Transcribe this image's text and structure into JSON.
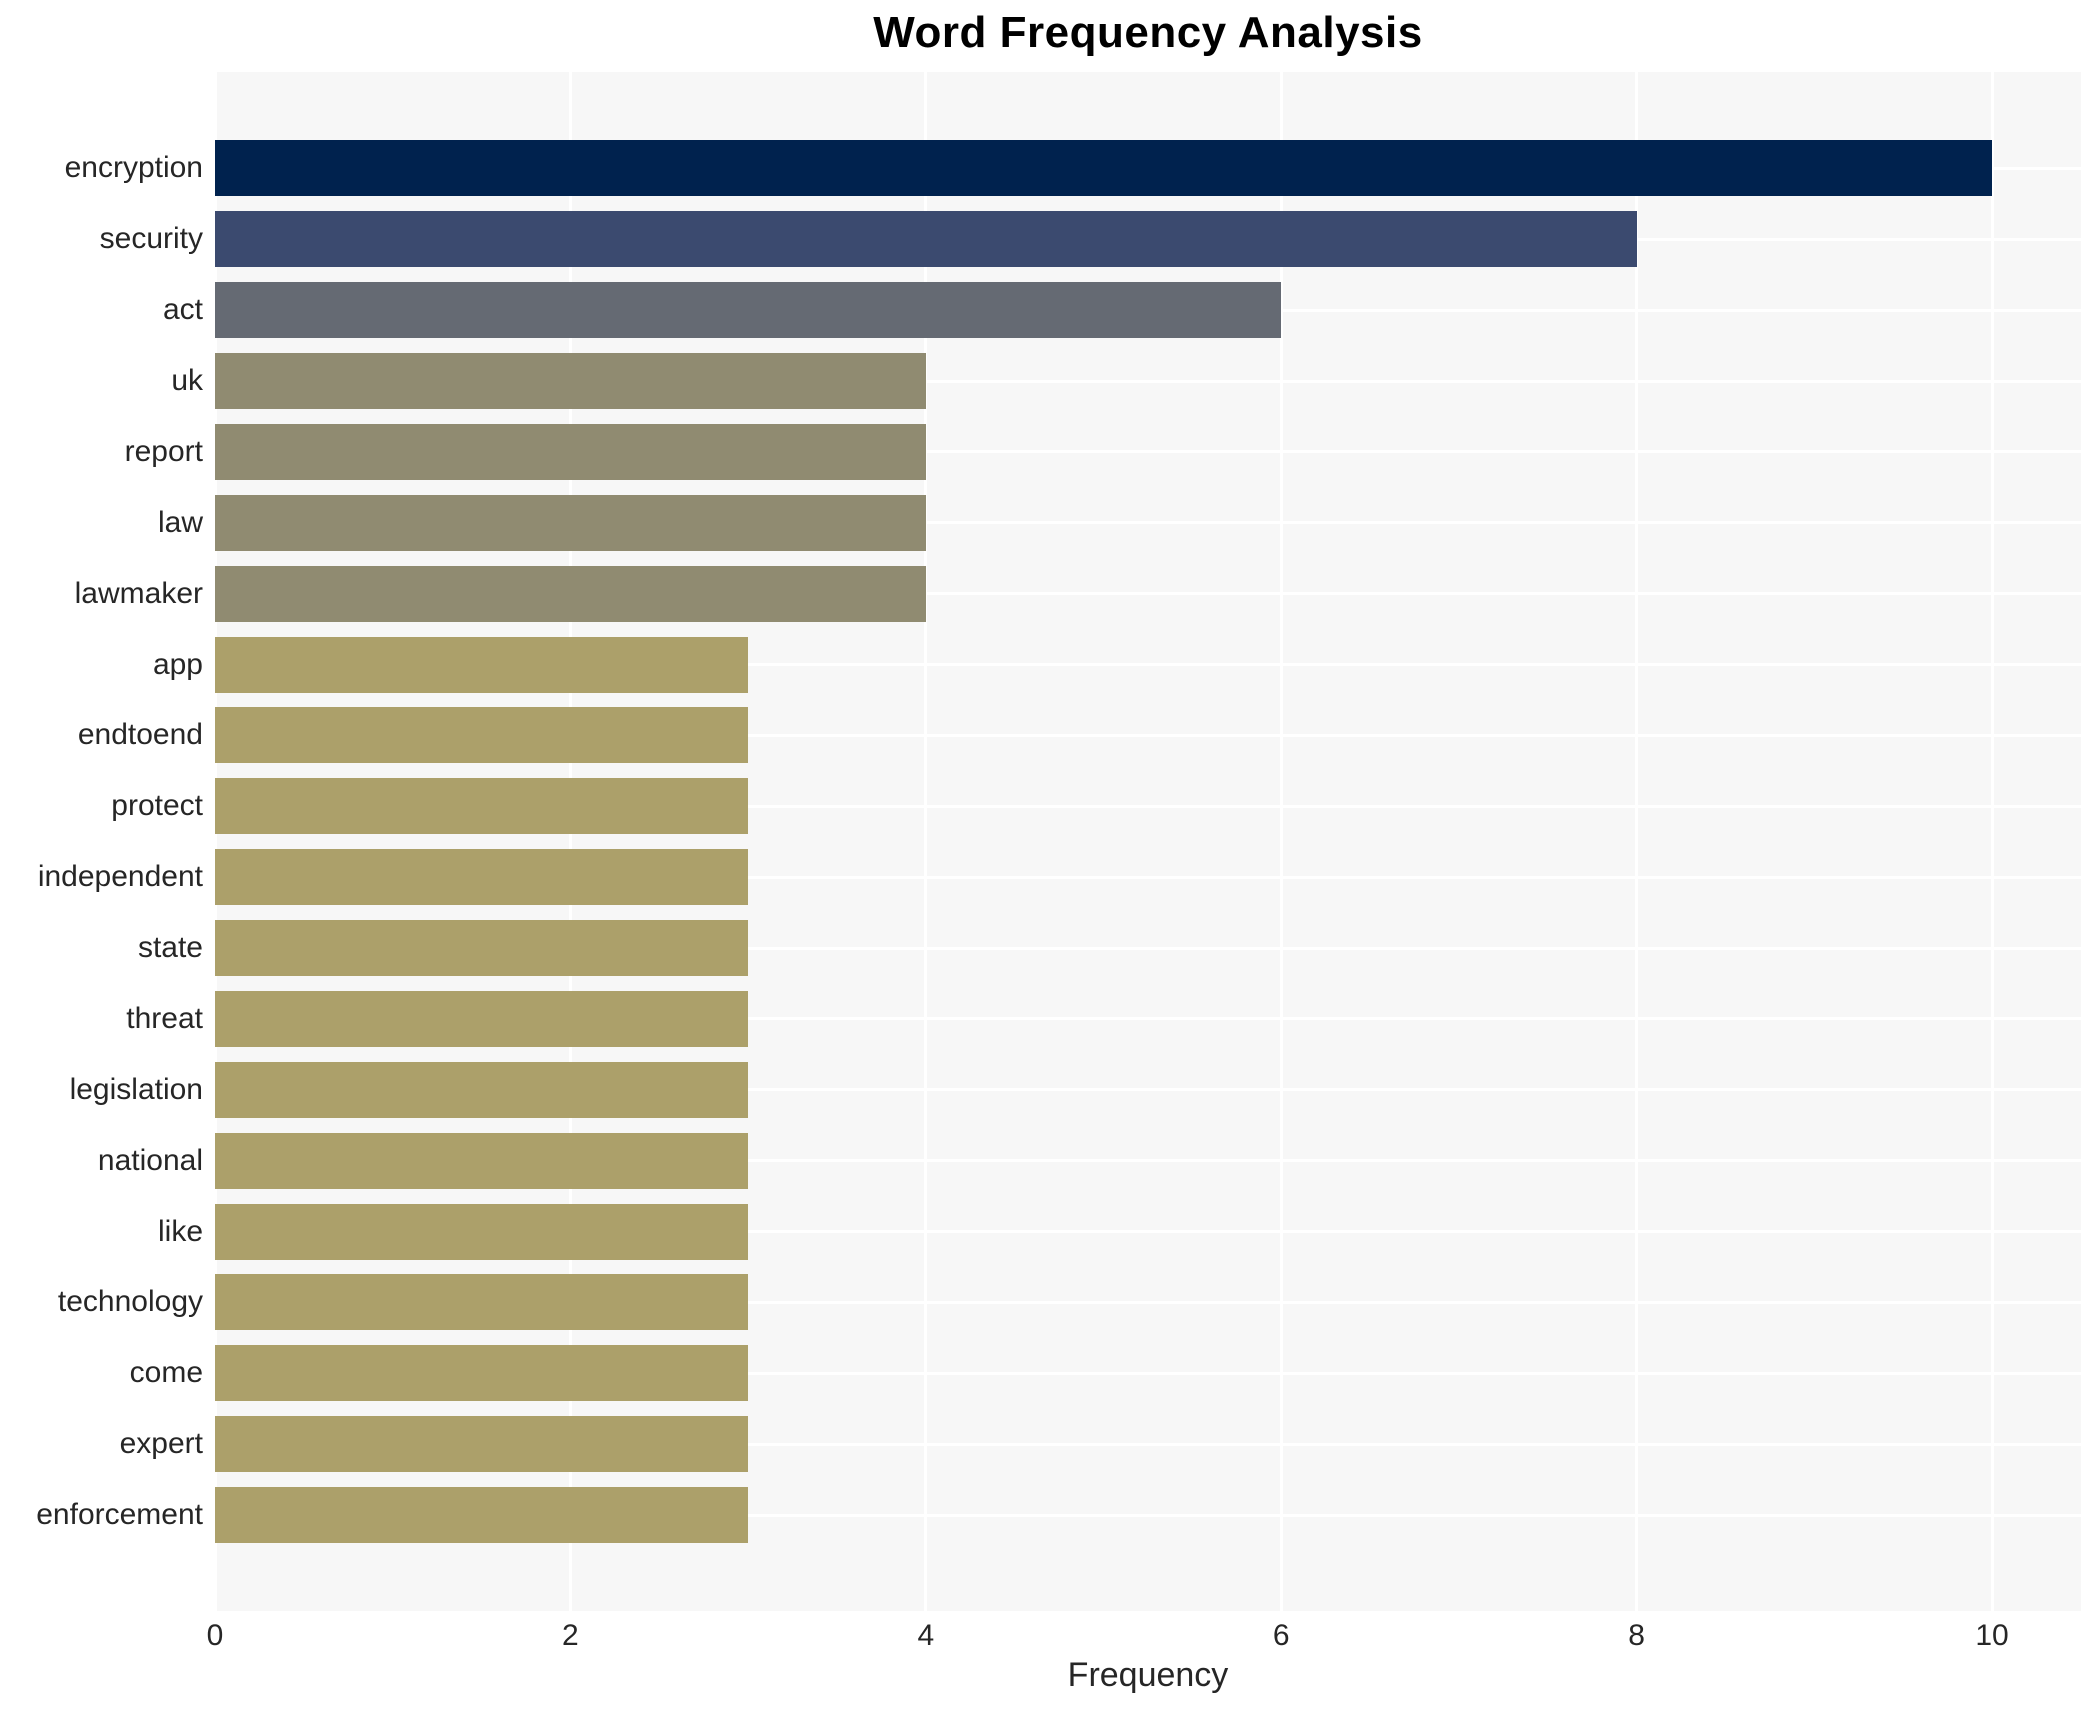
{
  "chart_data": {
    "type": "bar",
    "orientation": "horizontal",
    "title": "Word Frequency Analysis",
    "xlabel": "Frequency",
    "ylabel": "",
    "categories": [
      "encryption",
      "security",
      "act",
      "uk",
      "report",
      "law",
      "lawmaker",
      "app",
      "endtoend",
      "protect",
      "independent",
      "state",
      "threat",
      "legislation",
      "national",
      "like",
      "technology",
      "come",
      "expert",
      "enforcement"
    ],
    "values": [
      10,
      8,
      6,
      4,
      4,
      4,
      4,
      3,
      3,
      3,
      3,
      3,
      3,
      3,
      3,
      3,
      3,
      3,
      3,
      3
    ],
    "bar_colors": [
      "#00224e",
      "#3b4a6f",
      "#656a73",
      "#908b71",
      "#908b71",
      "#908b71",
      "#908b71",
      "#aca06a",
      "#aca06a",
      "#aca06a",
      "#aca06a",
      "#aca06a",
      "#aca06a",
      "#aca06a",
      "#aca06a",
      "#aca06a",
      "#aca06a",
      "#aca06a",
      "#aca06a",
      "#aca06a"
    ],
    "xticks": [
      0,
      2,
      4,
      6,
      8,
      10
    ],
    "xlim": [
      0,
      10.5
    ],
    "grid": true,
    "legend": false,
    "colors": {
      "figure_bg": "#ffffff",
      "plot_bg": "#f7f7f7",
      "gridline": "#ffffff",
      "tick_text": "#262626",
      "title_text": "#000000"
    }
  }
}
